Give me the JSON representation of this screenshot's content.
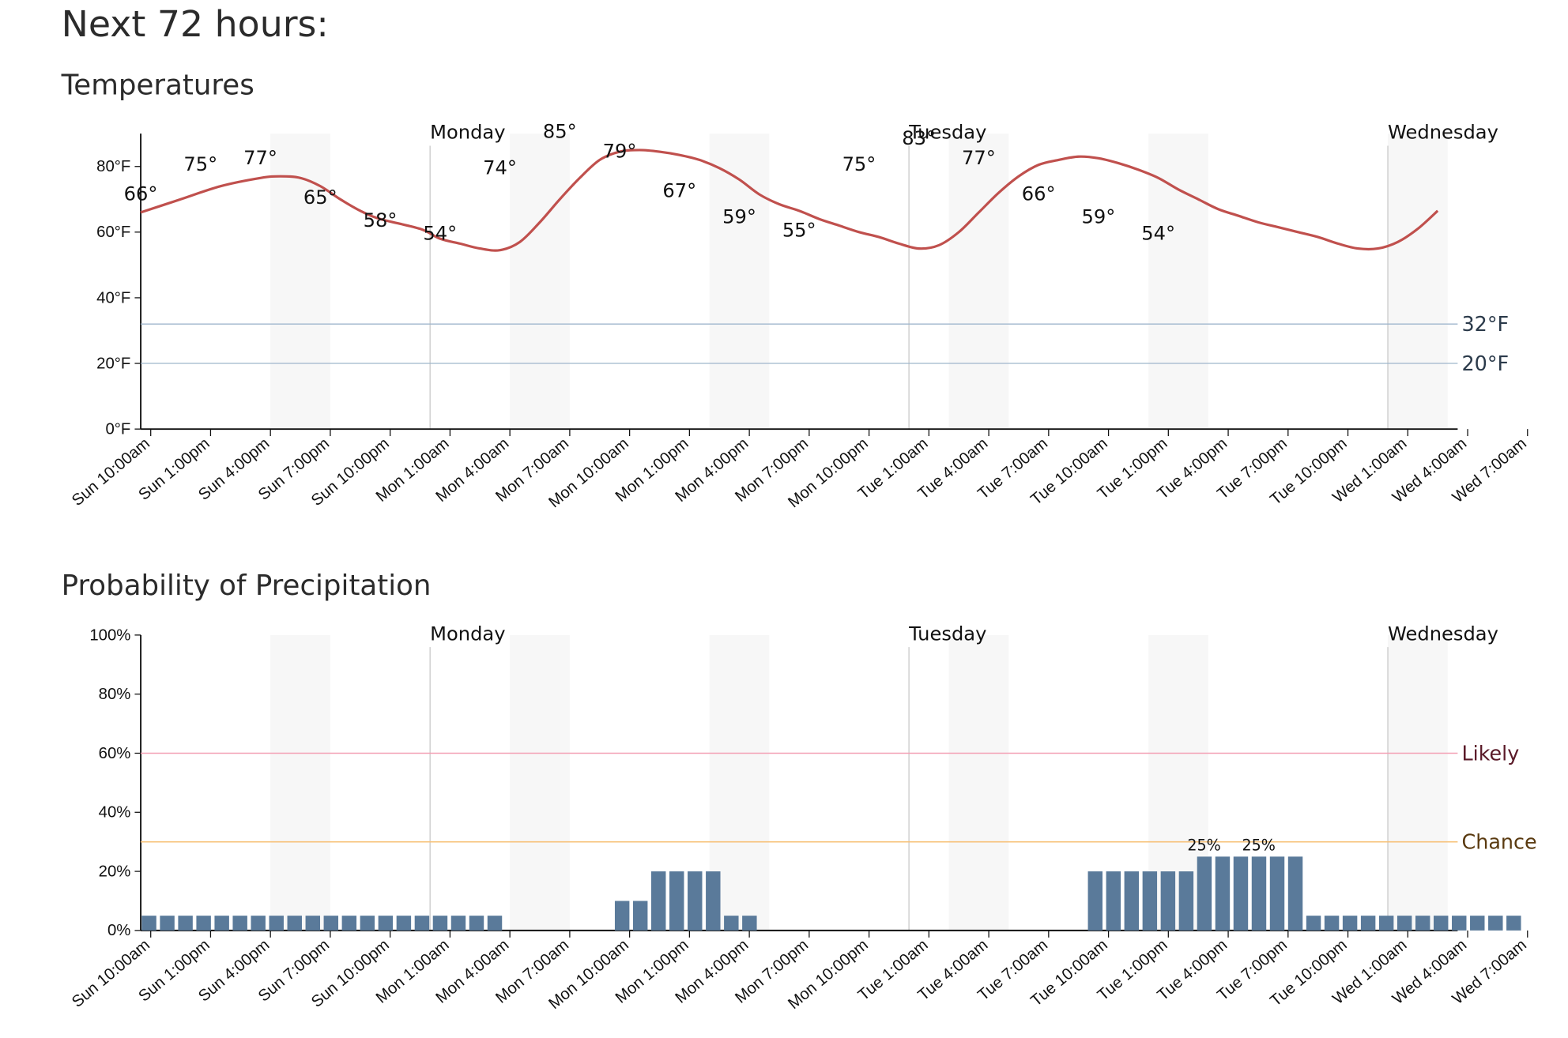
{
  "page_title": "Next 72 hours:",
  "colors": {
    "temp_line": "#c0504d",
    "bar": "#5a7a9a",
    "night_band": "#f7f7f7",
    "day_divider": "#c8c8c8",
    "freeze_line": "#9fb6cc",
    "likely_line": "#f3a0b4",
    "likely_text": "#5a1a28",
    "chance_line": "#f7c27a",
    "chance_text": "#5a3a10"
  },
  "time_ticks": [
    "Sun 10:00am",
    "Sun 1:00pm",
    "Sun 4:00pm",
    "Sun 7:00pm",
    "Sun 10:00pm",
    "Mon 1:00am",
    "Mon 4:00am",
    "Mon 7:00am",
    "Mon 10:00am",
    "Mon 1:00pm",
    "Mon 4:00pm",
    "Mon 7:00pm",
    "Mon 10:00pm",
    "Tue 1:00am",
    "Tue 4:00am",
    "Tue 7:00am",
    "Tue 10:00am",
    "Tue 1:00pm",
    "Tue 4:00pm",
    "Tue 7:00pm",
    "Tue 10:00pm",
    "Wed 1:00am",
    "Wed 4:00am",
    "Wed 7:00am"
  ],
  "day_labels": [
    "Monday",
    "Tuesday",
    "Wednesday"
  ],
  "chart_data": [
    {
      "type": "line",
      "title": "Temperatures",
      "y_ticks": [
        "0°F",
        "20°F",
        "40°F",
        "60°F",
        "80°F"
      ],
      "ylim": [
        0,
        90
      ],
      "x_unit": "hours from Sun 9:30am",
      "points": [
        {
          "x": 0,
          "y": 66
        },
        {
          "x": 2,
          "y": 70
        },
        {
          "x": 4,
          "y": 74
        },
        {
          "x": 6,
          "y": 76.5
        },
        {
          "x": 7,
          "y": 77
        },
        {
          "x": 8,
          "y": 76.5
        },
        {
          "x": 9,
          "y": 74
        },
        {
          "x": 10,
          "y": 70
        },
        {
          "x": 11,
          "y": 66.5
        },
        {
          "x": 12,
          "y": 64
        },
        {
          "x": 14,
          "y": 61
        },
        {
          "x": 15,
          "y": 58
        },
        {
          "x": 16,
          "y": 56.5
        },
        {
          "x": 17,
          "y": 55
        },
        {
          "x": 18,
          "y": 54.5
        },
        {
          "x": 19,
          "y": 57
        },
        {
          "x": 20,
          "y": 63
        },
        {
          "x": 21,
          "y": 70
        },
        {
          "x": 22,
          "y": 76.5
        },
        {
          "x": 23,
          "y": 82
        },
        {
          "x": 24,
          "y": 84.5
        },
        {
          "x": 25,
          "y": 85
        },
        {
          "x": 26,
          "y": 84.5
        },
        {
          "x": 27,
          "y": 83.5
        },
        {
          "x": 28,
          "y": 82
        },
        {
          "x": 29,
          "y": 79.5
        },
        {
          "x": 30,
          "y": 76
        },
        {
          "x": 31,
          "y": 71.5
        },
        {
          "x": 32,
          "y": 68.5
        },
        {
          "x": 33,
          "y": 66.5
        },
        {
          "x": 34,
          "y": 64
        },
        {
          "x": 35,
          "y": 62
        },
        {
          "x": 36,
          "y": 60
        },
        {
          "x": 37,
          "y": 58.5
        },
        {
          "x": 38,
          "y": 56.5
        },
        {
          "x": 39,
          "y": 55
        },
        {
          "x": 40,
          "y": 56
        },
        {
          "x": 41,
          "y": 60
        },
        {
          "x": 42,
          "y": 66
        },
        {
          "x": 43,
          "y": 72
        },
        {
          "x": 44,
          "y": 77
        },
        {
          "x": 45,
          "y": 80.5
        },
        {
          "x": 46,
          "y": 82
        },
        {
          "x": 47,
          "y": 83
        },
        {
          "x": 48,
          "y": 82.5
        },
        {
          "x": 49,
          "y": 81
        },
        {
          "x": 50,
          "y": 79
        },
        {
          "x": 51,
          "y": 76.5
        },
        {
          "x": 52,
          "y": 73
        },
        {
          "x": 53,
          "y": 70
        },
        {
          "x": 54,
          "y": 67
        },
        {
          "x": 55,
          "y": 65
        },
        {
          "x": 56,
          "y": 63
        },
        {
          "x": 57,
          "y": 61.5
        },
        {
          "x": 58,
          "y": 60
        },
        {
          "x": 59,
          "y": 58.5
        },
        {
          "x": 60,
          "y": 56.5
        },
        {
          "x": 61,
          "y": 55
        },
        {
          "x": 62,
          "y": 55
        },
        {
          "x": 63,
          "y": 57
        },
        {
          "x": 64,
          "y": 61
        },
        {
          "x": 65,
          "y": 66.5
        }
      ],
      "point_labels": [
        {
          "x": 0,
          "y": 66,
          "text": "66°"
        },
        {
          "x": 3,
          "y": 75,
          "text": "75°"
        },
        {
          "x": 6,
          "y": 77,
          "text": "77°"
        },
        {
          "x": 9,
          "y": 65,
          "text": "65°"
        },
        {
          "x": 12,
          "y": 58,
          "text": "58°"
        },
        {
          "x": 15,
          "y": 54,
          "text": "54°"
        },
        {
          "x": 18,
          "y": 74,
          "text": "74°"
        },
        {
          "x": 21,
          "y": 85,
          "text": "85°"
        },
        {
          "x": 24,
          "y": 79,
          "text": "79°"
        },
        {
          "x": 27,
          "y": 67,
          "text": "67°"
        },
        {
          "x": 30,
          "y": 59,
          "text": "59°"
        },
        {
          "x": 33,
          "y": 55,
          "text": "55°"
        },
        {
          "x": 36,
          "y": 75,
          "text": "75°"
        },
        {
          "x": 39,
          "y": 83,
          "text": "83°"
        },
        {
          "x": 42,
          "y": 77,
          "text": "77°"
        },
        {
          "x": 45,
          "y": 66,
          "text": "66°"
        },
        {
          "x": 48,
          "y": 59,
          "text": "59°"
        },
        {
          "x": 51,
          "y": 54,
          "text": "54°"
        }
      ],
      "reference_lines": [
        {
          "value": 32,
          "label": "32°F"
        },
        {
          "value": 20,
          "label": "20°F"
        }
      ]
    },
    {
      "type": "bar",
      "title": "Probability of Precipitation",
      "y_ticks": [
        "0%",
        "20%",
        "40%",
        "60%",
        "80%",
        "100%"
      ],
      "ylim": [
        0,
        100
      ],
      "values": [
        5,
        5,
        5,
        5,
        5,
        5,
        5,
        5,
        5,
        5,
        5,
        5,
        5,
        5,
        5,
        5,
        5,
        5,
        5,
        5,
        0,
        0,
        0,
        0,
        0,
        0,
        10,
        10,
        20,
        20,
        20,
        20,
        5,
        5,
        0,
        0,
        0,
        0,
        0,
        0,
        0,
        0,
        0,
        0,
        0,
        0,
        0,
        0,
        0,
        0,
        0,
        0,
        20,
        20,
        20,
        20,
        20,
        20,
        25,
        25,
        25,
        25,
        25,
        25,
        5,
        5,
        5,
        5,
        5,
        5,
        5,
        5,
        5,
        5,
        5,
        5
      ],
      "bar_labels": [
        {
          "index": 58,
          "text": "25%"
        },
        {
          "index": 61,
          "text": "25%"
        }
      ],
      "reference_lines": [
        {
          "value": 60,
          "label": "Likely"
        },
        {
          "value": 30,
          "label": "Chance"
        }
      ]
    }
  ]
}
